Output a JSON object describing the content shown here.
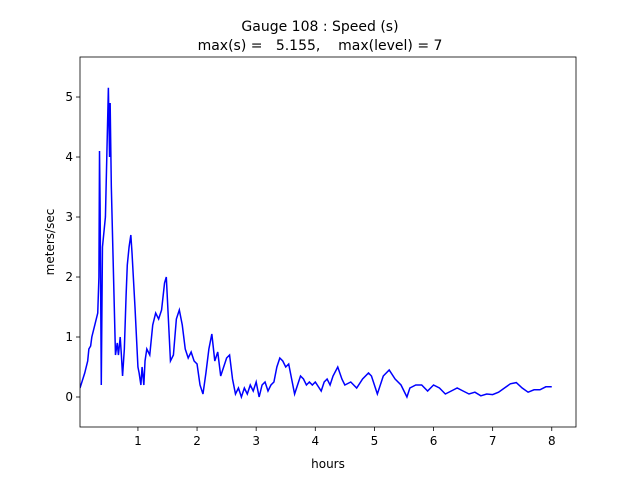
{
  "chart_data": {
    "type": "line",
    "title": "Gauge 108 : Speed (s)",
    "subtitle": "max(s) =   5.155,    max(level) = 7",
    "xlabel": "hours",
    "ylabel": "meters/sec",
    "xlim": [
      0.02,
      8.41
    ],
    "ylim": [
      -0.5,
      5.667
    ],
    "xticks": [
      1,
      2,
      3,
      4,
      5,
      6,
      7,
      8
    ],
    "yticks": [
      0,
      1,
      2,
      3,
      4,
      5
    ],
    "grid": false,
    "series": [
      {
        "name": "s",
        "color": "#0000ff",
        "x": [
          0.02,
          0.1,
          0.15,
          0.17,
          0.2,
          0.22,
          0.27,
          0.32,
          0.34,
          0.35,
          0.36,
          0.38,
          0.4,
          0.45,
          0.5,
          0.52,
          0.53,
          0.55,
          0.6,
          0.62,
          0.65,
          0.67,
          0.7,
          0.72,
          0.74,
          0.77,
          0.8,
          0.82,
          0.85,
          0.88,
          0.9,
          0.95,
          1.0,
          1.02,
          1.05,
          1.07,
          1.1,
          1.12,
          1.15,
          1.2,
          1.25,
          1.3,
          1.35,
          1.4,
          1.45,
          1.48,
          1.5,
          1.55,
          1.6,
          1.65,
          1.7,
          1.75,
          1.8,
          1.85,
          1.9,
          1.95,
          2.0,
          2.05,
          2.1,
          2.15,
          2.2,
          2.25,
          2.3,
          2.35,
          2.4,
          2.45,
          2.5,
          2.55,
          2.6,
          2.65,
          2.7,
          2.75,
          2.8,
          2.85,
          2.9,
          2.95,
          3.0,
          3.05,
          3.1,
          3.15,
          3.2,
          3.25,
          3.3,
          3.35,
          3.4,
          3.45,
          3.5,
          3.55,
          3.6,
          3.65,
          3.7,
          3.75,
          3.8,
          3.85,
          3.9,
          3.95,
          4.0,
          4.1,
          4.15,
          4.2,
          4.25,
          4.3,
          4.38,
          4.45,
          4.5,
          4.6,
          4.7,
          4.8,
          4.9,
          4.95,
          5.05,
          5.15,
          5.25,
          5.35,
          5.45,
          5.55,
          5.6,
          5.7,
          5.8,
          5.9,
          6.0,
          6.1,
          6.2,
          6.3,
          6.4,
          6.5,
          6.6,
          6.7,
          6.8,
          6.9,
          7.0,
          7.1,
          7.2,
          7.3,
          7.4,
          7.5,
          7.6,
          7.7,
          7.8,
          7.9,
          8.0
        ],
        "values": [
          0.15,
          0.4,
          0.6,
          0.8,
          0.85,
          1.0,
          1.2,
          1.4,
          2.0,
          4.1,
          3.2,
          0.2,
          2.5,
          3.0,
          5.155,
          4.0,
          4.9,
          3.5,
          1.5,
          0.7,
          0.9,
          0.7,
          1.0,
          0.7,
          0.35,
          0.8,
          1.7,
          2.2,
          2.5,
          2.7,
          2.4,
          1.5,
          0.5,
          0.4,
          0.2,
          0.5,
          0.2,
          0.6,
          0.8,
          0.7,
          1.2,
          1.4,
          1.3,
          1.45,
          1.9,
          2.0,
          1.6,
          0.6,
          0.7,
          1.3,
          1.45,
          1.2,
          0.8,
          0.65,
          0.75,
          0.6,
          0.55,
          0.2,
          0.05,
          0.4,
          0.8,
          1.05,
          0.6,
          0.75,
          0.35,
          0.5,
          0.65,
          0.7,
          0.3,
          0.05,
          0.15,
          0.0,
          0.15,
          0.05,
          0.2,
          0.1,
          0.25,
          0.0,
          0.2,
          0.25,
          0.1,
          0.2,
          0.25,
          0.5,
          0.65,
          0.6,
          0.5,
          0.55,
          0.3,
          0.05,
          0.2,
          0.35,
          0.3,
          0.2,
          0.25,
          0.2,
          0.25,
          0.1,
          0.25,
          0.3,
          0.2,
          0.35,
          0.5,
          0.3,
          0.2,
          0.25,
          0.15,
          0.3,
          0.4,
          0.35,
          0.05,
          0.35,
          0.45,
          0.3,
          0.2,
          0.0,
          0.15,
          0.2,
          0.2,
          0.1,
          0.2,
          0.15,
          0.05,
          0.1,
          0.15,
          0.1,
          0.05,
          0.08,
          0.02,
          0.05,
          0.04,
          0.08,
          0.15,
          0.22,
          0.24,
          0.15,
          0.08,
          0.12,
          0.12,
          0.17,
          0.17
        ]
      }
    ]
  }
}
